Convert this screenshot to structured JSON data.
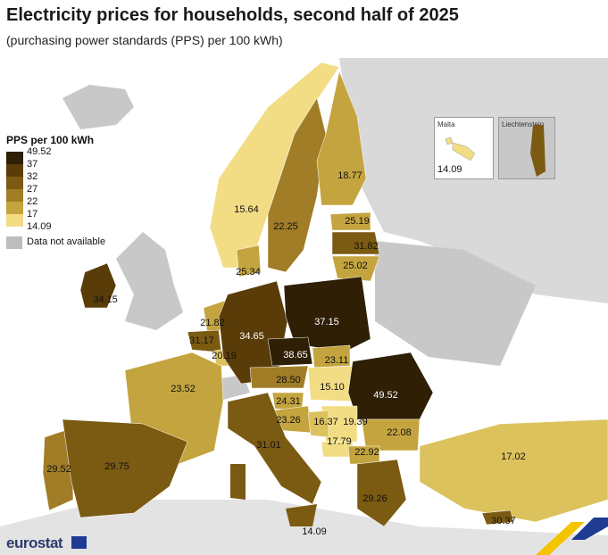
{
  "title": "Electricity prices for households, second half of 2025",
  "subtitle": "(purchasing power standards (PPS) per 100 kWh)",
  "legend": {
    "title": "PPS per 100 kWh",
    "ticks": [
      "49.52",
      "37",
      "32",
      "27",
      "22",
      "17",
      "14.09"
    ],
    "colors": [
      "#2e1f05",
      "#5a3c08",
      "#7b5a12",
      "#a07d26",
      "#c4a43e",
      "#dcc25c",
      "#f2dc84"
    ],
    "na_label": "Data not available",
    "na_color": "#bdbdbd"
  },
  "insets": {
    "malta": {
      "name": "Malta",
      "value": "14.09"
    },
    "liechtenstein": {
      "name": "Liechtenstein"
    }
  },
  "countries": {
    "ireland": "34.15",
    "norway": "15.64",
    "sweden": "22.25",
    "finland": "18.77",
    "estonia": "25.19",
    "latvia": "31.82",
    "lithuania": "25.02",
    "denmark": "25.34",
    "netherlands": "21.82",
    "belgium": "31.17",
    "luxembourg": "20.19",
    "germany": "34.65",
    "poland": "37.15",
    "czechia": "38.65",
    "slovakia": "23.11",
    "austria": "28.50",
    "hungary": "15.10",
    "romania": "49.52",
    "france": "23.52",
    "slovenia": "24.31",
    "croatia": "23.26",
    "serbia": "16.37",
    "bosnia": "19.39",
    "montenegro": "17.79",
    "bulgaria": "22.08",
    "north_macedonia": "22.92",
    "italy": "31.01",
    "portugal": "29.52",
    "spain": "29.75",
    "greece": "29.26",
    "turkey": "17.02",
    "cyprus": "30.37",
    "malta_main": "14.09"
  },
  "footer": {
    "brand": "eurostat"
  }
}
